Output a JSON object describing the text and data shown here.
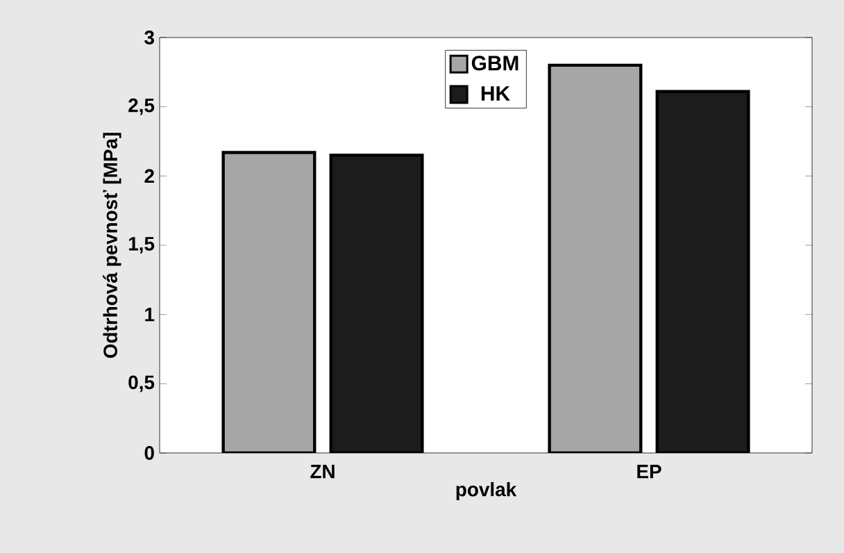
{
  "chart_data": {
    "type": "bar",
    "xlabel": "povlak",
    "ylabel": "Odtrhová pevnosť [MPa]",
    "categories": [
      "ZN",
      "EP"
    ],
    "series": [
      {
        "name": "GBM",
        "color": "#a6a6a6",
        "values": [
          2.17,
          2.8
        ]
      },
      {
        "name": "HK",
        "color": "#1c1c1c",
        "values": [
          2.15,
          2.61
        ]
      }
    ],
    "ylim": [
      0,
      3
    ],
    "yticks": [
      0,
      {
        "value": 0.5,
        "label": "0,5"
      },
      1,
      {
        "value": 1.5,
        "label": "1,5"
      },
      2,
      {
        "value": 2.5,
        "label": "2,5"
      },
      3
    ],
    "grid": false,
    "legend": "top"
  }
}
